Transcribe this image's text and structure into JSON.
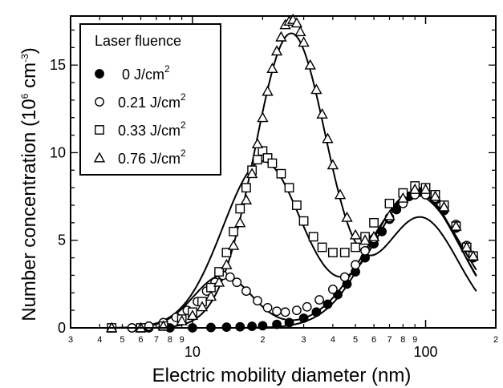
{
  "chart_data": {
    "type": "scatter",
    "title": "",
    "xlabel": "Electric mobility diameter (nm)",
    "ylabel_main": "Number concentration (10",
    "ylabel_exp": "6",
    "ylabel_unit": " cm",
    "ylabel_unit_exp": "-3",
    "ylabel_close": ")",
    "xscale": "log",
    "xlim": [
      3,
      200
    ],
    "ylim": [
      0,
      17.8
    ],
    "grid": false,
    "legend": {
      "title": "Laser fluence",
      "placement": "top-left",
      "entries": [
        {
          "marker": "filled-circle",
          "label": "0 J/cm",
          "sup": "2"
        },
        {
          "marker": "open-circle",
          "label": "0.21 J/cm",
          "sup": "2"
        },
        {
          "marker": "open-square",
          "label": "0.33 J/cm",
          "sup": "2"
        },
        {
          "marker": "open-triangle",
          "label": "0.76 J/cm",
          "sup": "2"
        }
      ]
    },
    "x_major_ticks": [
      {
        "value": 10,
        "label": "10"
      },
      {
        "value": 100,
        "label": "100"
      }
    ],
    "x_minor_ticks": [
      {
        "value": 3,
        "label": "3"
      },
      {
        "value": 4,
        "label": "4"
      },
      {
        "value": 5,
        "label": "5"
      },
      {
        "value": 6,
        "label": "6"
      },
      {
        "value": 7,
        "label": "7"
      },
      {
        "value": 8,
        "label": "8"
      },
      {
        "value": 9,
        "label": "9"
      },
      {
        "value": 20,
        "label": "2"
      },
      {
        "value": 30,
        "label": "3"
      },
      {
        "value": 40,
        "label": "4"
      },
      {
        "value": 50,
        "label": "5"
      },
      {
        "value": 60,
        "label": "6"
      },
      {
        "value": 70,
        "label": "7"
      },
      {
        "value": 80,
        "label": "8"
      },
      {
        "value": 90,
        "label": "9"
      },
      {
        "value": 200,
        "label": "2"
      }
    ],
    "y_ticks": [
      {
        "value": 0,
        "label": "0"
      },
      {
        "value": 5,
        "label": "5"
      },
      {
        "value": 10,
        "label": "10"
      },
      {
        "value": 15,
        "label": "15"
      }
    ],
    "series": [
      {
        "marker": "filled-circle",
        "fit": {
          "modes": [
            {
              "n": 7.8,
              "dg": 90,
              "sg": 1.55
            }
          ]
        },
        "x": [
          4.5,
          5.5,
          6.5,
          8,
          10,
          12,
          14,
          16,
          18,
          20,
          23,
          26,
          30,
          34,
          38,
          42,
          46,
          50,
          55,
          60,
          65,
          70,
          75,
          80,
          85,
          90,
          95,
          100,
          110,
          120,
          135,
          150,
          160
        ],
        "y": [
          0.0,
          0.0,
          0.0,
          0.0,
          0.0,
          0.02,
          0.04,
          0.06,
          0.09,
          0.12,
          0.2,
          0.3,
          0.55,
          0.9,
          1.35,
          1.9,
          2.5,
          3.2,
          4.0,
          4.8,
          5.5,
          6.2,
          6.75,
          7.2,
          7.5,
          7.7,
          7.75,
          7.65,
          7.3,
          6.7,
          5.7,
          4.6,
          4.0
        ]
      },
      {
        "marker": "open-circle",
        "fit": {
          "modes": [
            {
              "n": 3.0,
              "dg": 13.5,
              "sg": 1.33
            },
            {
              "n": 7.6,
              "dg": 90,
              "sg": 1.6
            }
          ]
        },
        "x": [
          4.5,
          5.5,
          6.5,
          7.5,
          8.5,
          9.5,
          10.5,
          11.5,
          12.5,
          13.5,
          14.5,
          15.5,
          17,
          19,
          21,
          23,
          25,
          28,
          31,
          35,
          40,
          45,
          50,
          55,
          60,
          70,
          80,
          90,
          100,
          110,
          120,
          135,
          150,
          160
        ],
        "y": [
          0.0,
          0.0,
          0.1,
          0.3,
          0.6,
          1.0,
          1.5,
          2.1,
          2.6,
          3.0,
          2.9,
          2.6,
          2.1,
          1.55,
          1.15,
          0.95,
          0.9,
          1.0,
          1.2,
          1.6,
          2.2,
          2.9,
          3.6,
          4.4,
          5.1,
          6.3,
          7.1,
          7.6,
          7.6,
          7.4,
          6.9,
          5.9,
          4.7,
          4.1
        ]
      },
      {
        "marker": "open-square",
        "fit": {
          "modes": [
            {
              "n": 9.5,
              "dg": 20,
              "sg": 1.48
            },
            {
              "n": 7.8,
              "dg": 92,
              "sg": 1.52
            }
          ]
        },
        "x": [
          4.5,
          6,
          7.5,
          9,
          10,
          11,
          12,
          13,
          14,
          15,
          16,
          17,
          18,
          19,
          20,
          21,
          22,
          24,
          26,
          28,
          30,
          33,
          36,
          40,
          45,
          50,
          55,
          60,
          70,
          80,
          90,
          100,
          110,
          120,
          135,
          150,
          160
        ],
        "y": [
          0.0,
          0.0,
          0.1,
          0.5,
          0.9,
          1.5,
          2.3,
          3.2,
          4.3,
          5.5,
          6.8,
          8.0,
          9.0,
          9.6,
          10.1,
          9.7,
          9.4,
          8.8,
          8.0,
          7.0,
          6.1,
          5.2,
          4.6,
          4.3,
          4.3,
          4.6,
          5.2,
          6.0,
          7.1,
          7.7,
          8.1,
          8.0,
          7.6,
          7.0,
          5.8,
          4.6,
          4.1
        ]
      },
      {
        "marker": "open-triangle",
        "fit": {
          "modes": [
            {
              "n": 16.8,
              "dg": 26.5,
              "sg": 1.43
            },
            {
              "n": 6.3,
              "dg": 95,
              "sg": 1.45
            }
          ]
        },
        "x": [
          4.5,
          6,
          7.5,
          9,
          10,
          11,
          12,
          13,
          14,
          15,
          16,
          17,
          18,
          19,
          20,
          21,
          22,
          23,
          24,
          25,
          26,
          27,
          28,
          29,
          30,
          32,
          34,
          36,
          38,
          40,
          43,
          46,
          50,
          55,
          60,
          70,
          80,
          90,
          100,
          110,
          120,
          135,
          150,
          160
        ],
        "y": [
          0.0,
          0.0,
          0.1,
          0.4,
          0.7,
          1.2,
          1.8,
          2.6,
          3.6,
          4.7,
          6.0,
          7.3,
          8.8,
          10.5,
          12.0,
          13.5,
          14.8,
          15.8,
          16.6,
          17.3,
          17.5,
          17.6,
          17.4,
          16.9,
          16.3,
          15.0,
          13.6,
          12.2,
          10.8,
          9.3,
          7.6,
          6.3,
          5.3,
          5.0,
          5.2,
          6.4,
          7.4,
          7.9,
          7.9,
          7.5,
          6.9,
          5.8,
          4.6,
          4.1
        ]
      }
    ]
  }
}
